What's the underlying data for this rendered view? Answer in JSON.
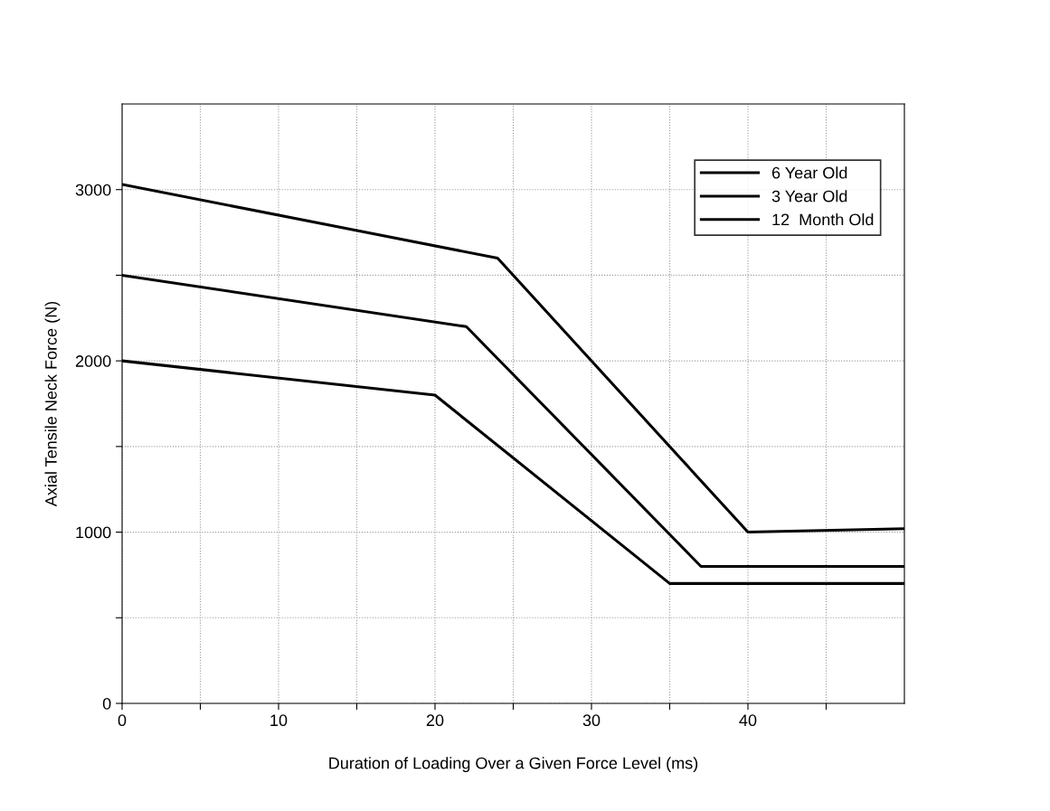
{
  "chart_data": {
    "type": "line",
    "xlabel": "Duration of Loading Over a Given Force Level (ms)",
    "ylabel": "Axial Tensile Neck Force (N)",
    "xlim": [
      0,
      50
    ],
    "ylim": [
      0,
      3500
    ],
    "xticks": [
      0,
      {
        "value": 5,
        "label": null
      },
      10,
      {
        "value": 15,
        "label": null
      },
      20,
      {
        "value": 25,
        "label": null
      },
      30,
      {
        "value": 35,
        "label": null
      },
      40,
      {
        "value": 45,
        "label": null
      }
    ],
    "yticks": [
      0,
      {
        "value": 500,
        "label": null
      },
      1000,
      {
        "value": 1500,
        "label": null
      },
      2000,
      {
        "value": 2500,
        "label": null
      },
      3000
    ],
    "grid": true,
    "legend": "top right",
    "marker": "none",
    "line_style": "solid",
    "series": [
      {
        "name": "6 Year Old",
        "color": "#000000",
        "x": [
          0,
          24,
          40,
          50
        ],
        "values": [
          3030,
          2600,
          1000,
          1020
        ]
      },
      {
        "name": "3 Year Old",
        "color": "#000000",
        "x": [
          0,
          22,
          37,
          50
        ],
        "values": [
          2500,
          2200,
          800,
          800
        ]
      },
      {
        "name": "12  Month Old",
        "color": "#000000",
        "x": [
          0,
          20,
          35,
          50
        ],
        "values": [
          2000,
          1800,
          700,
          700
        ]
      }
    ]
  }
}
